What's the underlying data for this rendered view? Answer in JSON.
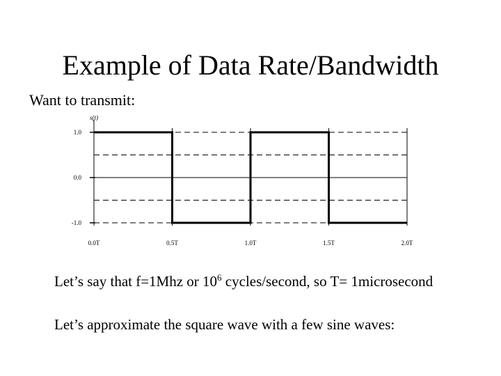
{
  "slide": {
    "title": "Example of Data Rate/Bandwidth",
    "intro": "Want to transmit:",
    "bullet1": {
      "before": "Let’s say that f=1Mhz or 10",
      "sup": "6",
      "after": " cycles/second, so T= 1microsecond"
    },
    "bullet2": "Let’s approximate the square wave with a few sine waves:"
  },
  "chart_data": {
    "type": "line",
    "ylabel": "s(t)",
    "x_tick_labels": [
      "0.0T",
      "0.5T",
      "1.0T",
      "1.5T",
      "2.0T"
    ],
    "y_tick_labels": [
      "1.0",
      "0.0",
      "-1.0"
    ],
    "x_ticks": [
      0,
      0.5,
      1.0,
      1.5,
      2.0
    ],
    "y_ticks": [
      1.0,
      0.0,
      -1.0
    ],
    "xlim": [
      0,
      2.0
    ],
    "ylim": [
      -1.0,
      1.0
    ],
    "series": [
      {
        "points": [
          [
            0,
            1
          ],
          [
            0.5,
            1
          ],
          [
            0.5,
            -1
          ],
          [
            1.0,
            -1
          ],
          [
            1.0,
            1
          ],
          [
            1.5,
            1
          ],
          [
            1.5,
            -1
          ],
          [
            2.0,
            -1
          ]
        ]
      }
    ],
    "dashed_gridlines": true,
    "line_color": "#000000"
  }
}
